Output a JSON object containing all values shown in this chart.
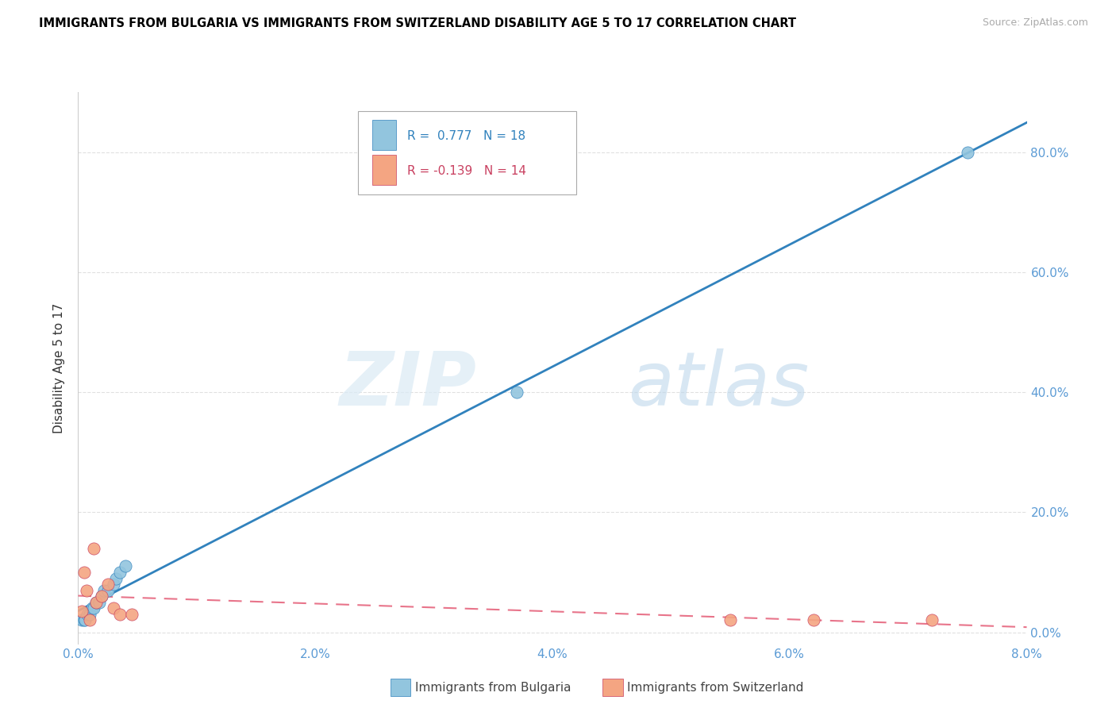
{
  "title": "IMMIGRANTS FROM BULGARIA VS IMMIGRANTS FROM SWITZERLAND DISABILITY AGE 5 TO 17 CORRELATION CHART",
  "source": "Source: ZipAtlas.com",
  "ylabel": "Disability Age 5 to 17",
  "xlim": [
    0.0,
    0.08
  ],
  "ylim": [
    -0.02,
    0.9
  ],
  "bulgaria_x": [
    0.0003,
    0.0005,
    0.0006,
    0.0008,
    0.001,
    0.0012,
    0.0013,
    0.0015,
    0.0018,
    0.002,
    0.0022,
    0.0025,
    0.003,
    0.0032,
    0.0035,
    0.004,
    0.037,
    0.075
  ],
  "bulgaria_y": [
    0.02,
    0.02,
    0.02,
    0.03,
    0.03,
    0.04,
    0.04,
    0.05,
    0.05,
    0.06,
    0.07,
    0.07,
    0.08,
    0.09,
    0.1,
    0.11,
    0.4,
    0.8
  ],
  "switzerland_x": [
    0.0003,
    0.0005,
    0.0007,
    0.001,
    0.0013,
    0.0015,
    0.002,
    0.0025,
    0.003,
    0.0035,
    0.0045,
    0.055,
    0.062,
    0.072
  ],
  "switzerland_y": [
    0.035,
    0.1,
    0.07,
    0.02,
    0.14,
    0.05,
    0.06,
    0.08,
    0.04,
    0.03,
    0.03,
    0.02,
    0.02,
    0.02
  ],
  "bulgaria_color": "#92c5de",
  "switzerland_color": "#f4a582",
  "bulgaria_line_color": "#3182bd",
  "switzerland_line_color": "#e8748a",
  "R_bulgaria": 0.777,
  "N_bulgaria": 18,
  "R_switzerland": -0.139,
  "N_switzerland": 14,
  "watermark_zip": "ZIP",
  "watermark_atlas": "atlas",
  "background_color": "#ffffff",
  "grid_color": "#e0e0e0"
}
